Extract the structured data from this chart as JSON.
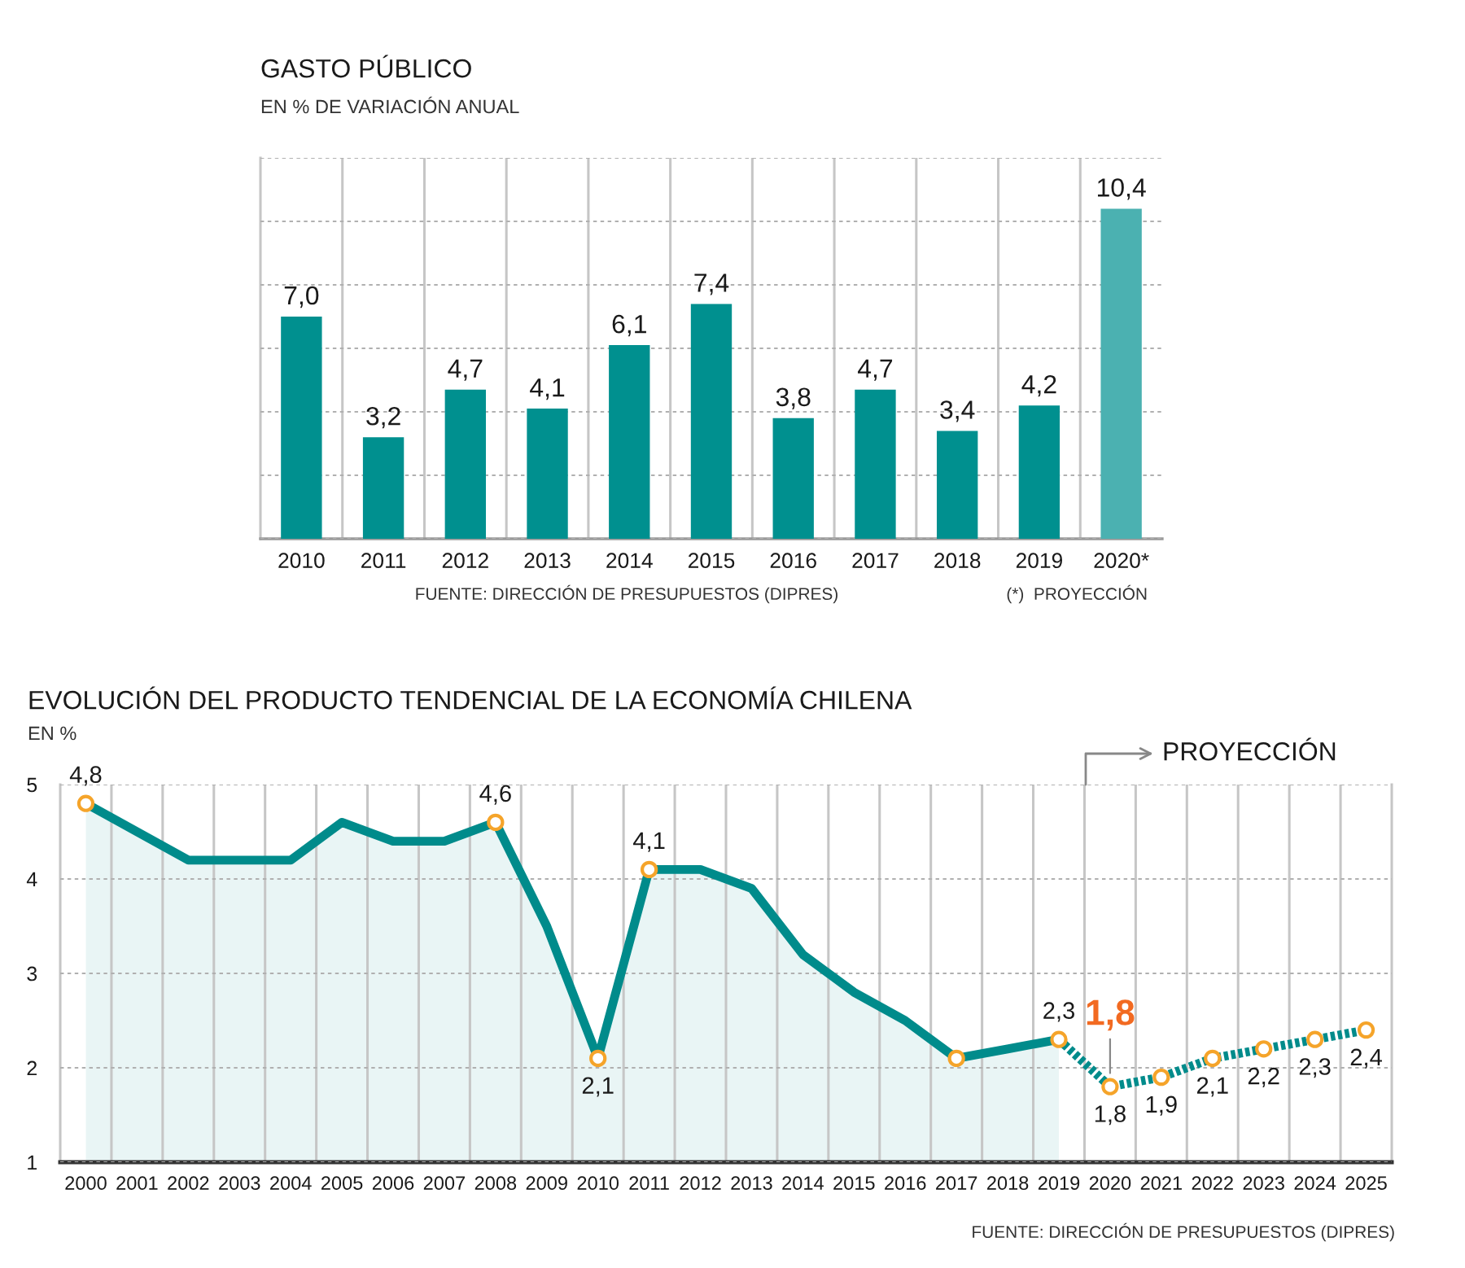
{
  "chart_data": [
    {
      "type": "bar",
      "title": "GASTO PÚBLICO",
      "subtitle": "EN % DE VARIACIÓN ANUAL",
      "categories": [
        "2010",
        "2011",
        "2012",
        "2013",
        "2014",
        "2015",
        "2016",
        "2017",
        "2018",
        "2019",
        "2020*"
      ],
      "values": [
        7.0,
        3.2,
        4.7,
        4.1,
        6.1,
        7.4,
        3.8,
        4.7,
        3.4,
        4.2,
        10.4
      ],
      "value_labels": [
        "7,0",
        "3,2",
        "4,7",
        "4,1",
        "6,1",
        "7,4",
        "3,8",
        "4,7",
        "3,4",
        "4,2",
        "10,4"
      ],
      "colors": [
        "#00908f",
        "#00908f",
        "#00908f",
        "#00908f",
        "#00908f",
        "#00908f",
        "#00908f",
        "#00908f",
        "#00908f",
        "#00908f",
        "#4bb1b1"
      ],
      "ylim": [
        0,
        12
      ],
      "yticks": [
        {
          "value": 0,
          "label": null
        },
        {
          "value": 2,
          "label": null
        },
        {
          "value": 4,
          "label": null
        },
        {
          "value": 6,
          "label": null
        },
        {
          "value": 8,
          "label": null
        },
        {
          "value": 10,
          "label": null
        },
        {
          "value": 12,
          "label": null
        }
      ],
      "tick_labels": "x",
      "grid": true,
      "annotations": [
        "FUENTE: DIRECCIÓN DE PRESUPUESTOS (DIPRES)",
        "(*)  PROYECCIÓN"
      ]
    },
    {
      "type": "line",
      "title": "EVOLUCIÓN DEL PRODUCTO TENDENCIAL DE LA ECONOMÍA CHILENA",
      "subtitle": "EN %",
      "series": [
        {
          "type": "area",
          "color": "#008b8b",
          "line_style": "solid",
          "x": [
            2000,
            2001,
            2002,
            2003,
            2004,
            2005,
            2006,
            2007,
            2008,
            2009,
            2010,
            2011,
            2012,
            2013,
            2014,
            2015,
            2016,
            2017,
            2018,
            2019
          ],
          "values": [
            4.8,
            4.5,
            4.2,
            4.2,
            4.2,
            4.6,
            4.4,
            4.4,
            4.6,
            3.5,
            2.1,
            4.1,
            4.1,
            3.9,
            3.2,
            2.8,
            2.5,
            2.1,
            2.2,
            2.3
          ]
        },
        {
          "type": "line",
          "color": "#008b8b",
          "line_style": "dotted",
          "x": [
            2019,
            2020,
            2021,
            2022,
            2023,
            2024,
            2025
          ],
          "values": [
            2.3,
            1.8,
            1.9,
            2.1,
            2.2,
            2.3,
            2.4
          ]
        },
        {
          "type": "scatter",
          "color": "#f5a42a",
          "marker": "circle",
          "x": [
            2000,
            2008,
            2010,
            2011,
            2017,
            2019,
            2020,
            2021,
            2022,
            2023,
            2024,
            2025
          ],
          "values": [
            4.8,
            4.6,
            2.1,
            4.1,
            2.1,
            2.3,
            1.8,
            1.9,
            2.1,
            2.2,
            2.3,
            2.4
          ],
          "value_labels": [
            "4,8",
            "4,6",
            "2,1",
            "4,1",
            null,
            "2,3",
            "1,8",
            "1,9",
            "2,1",
            "2,2",
            "2,3",
            "2,4"
          ]
        }
      ],
      "xlim": [
        1999.5,
        2025.5
      ],
      "xticks": [
        2000,
        2001,
        2002,
        2003,
        2004,
        2005,
        2006,
        2007,
        2008,
        2009,
        2010,
        2011,
        2012,
        2013,
        2014,
        2015,
        2016,
        2017,
        2018,
        2019,
        2020,
        2021,
        2022,
        2023,
        2024,
        2025
      ],
      "ylim": [
        1,
        5
      ],
      "yticks": [
        1,
        2,
        3,
        4,
        5
      ],
      "grid": true,
      "annotations": [
        "PROYECCIÓN",
        {
          "text": "1,8",
          "x": 2020,
          "y": 1.8
        },
        "FUENTE: DIRECCIÓN DE PRESUPUESTOS (DIPRES)"
      ]
    }
  ]
}
